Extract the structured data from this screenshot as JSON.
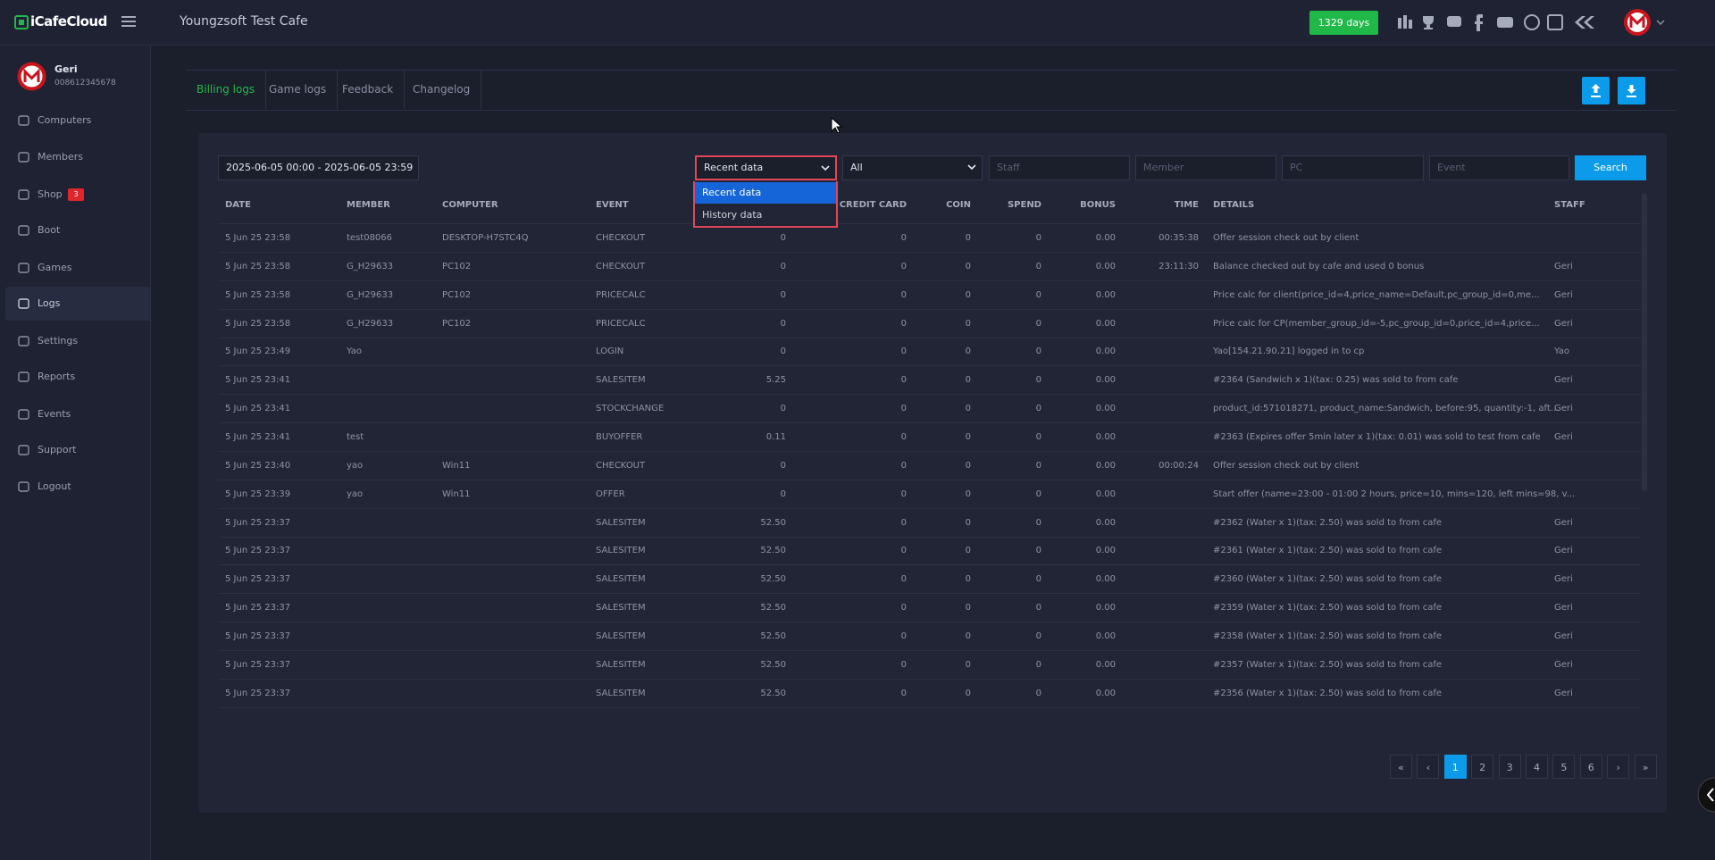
{
  "header": {
    "logo": "iCafeCloud",
    "title": "Youngzsoft Test Cafe",
    "license_button": "1329 days"
  },
  "sidebar": {
    "user_name": "Geri",
    "user_phone": "008612345678",
    "shop_badge": "3",
    "menu": [
      "Computers",
      "Members",
      "Shop",
      "Boot",
      "Games",
      "Logs",
      "Settings",
      "Reports",
      "Events",
      "Support",
      "Logout"
    ],
    "active": "Logs"
  },
  "tabs": [
    "Billing logs",
    "Game logs",
    "Feedback",
    "Changelog"
  ],
  "filters": {
    "date_range": "2025-06-05 00:00 - 2025-06-05 23:59",
    "data_source": "Recent data",
    "data_source_options": [
      "Recent data",
      "History data"
    ],
    "event_type": "All",
    "placeholders": {
      "staff": "Staff",
      "member": "Member",
      "pc": "PC",
      "event": "Event"
    },
    "search_button": "Search"
  },
  "table": {
    "headers": [
      "DATE",
      "MEMBER",
      "COMPUTER",
      "EVENT",
      null,
      "CREDIT CARD",
      "COIN",
      "SPEND",
      "BONUS",
      "TIME",
      "DETAILS",
      "STAFF"
    ],
    "rows": [
      [
        "5 Jun 25 23:58",
        "test08066",
        "DESKTOP-H7STC4Q",
        "CHECKOUT",
        "0",
        "0",
        "0",
        "0",
        "0.00",
        "00:35:38",
        "Offer session check out by client",
        null
      ],
      [
        "5 Jun 25 23:58",
        "G_H29633",
        "PC102",
        "CHECKOUT",
        "0",
        "0",
        "0",
        "0",
        "0.00",
        "23:11:30",
        "Balance checked out by cafe and used 0 bonus",
        "Geri"
      ],
      [
        "5 Jun 25 23:58",
        "G_H29633",
        "PC102",
        "PRICECALC",
        "0",
        "0",
        "0",
        "0",
        "0.00",
        null,
        "Price calc for client(price_id=4,price_name=Default,pc_group_id=0,me...",
        "Geri"
      ],
      [
        "5 Jun 25 23:58",
        "G_H29633",
        "PC102",
        "PRICECALC",
        "0",
        "0",
        "0",
        "0",
        "0.00",
        null,
        "Price calc for CP(member_group_id=-5,pc_group_id=0,price_id=4,price...",
        "Geri"
      ],
      [
        "5 Jun 25 23:49",
        "Yao",
        null,
        "LOGIN",
        "0",
        "0",
        "0",
        "0",
        "0.00",
        null,
        "Yao[154.21.90.21] logged in to cp",
        "Yao"
      ],
      [
        "5 Jun 25 23:41",
        null,
        null,
        "SALESITEM",
        "5.25",
        "0",
        "0",
        "0",
        "0.00",
        null,
        "#2364 (Sandwich x 1)(tax: 0.25) was sold to from cafe",
        "Geri"
      ],
      [
        "5 Jun 25 23:41",
        null,
        null,
        "STOCKCHANGE",
        "0",
        "0",
        "0",
        "0",
        "0.00",
        null,
        "product_id:571018271, product_name:Sandwich, before:95, quantity:-1, aft...",
        "Geri"
      ],
      [
        "5 Jun 25 23:41",
        "test",
        null,
        "BUYOFFER",
        "0.11",
        "0",
        "0",
        "0",
        "0.00",
        null,
        "#2363 (Expires offer 5min later x 1)(tax: 0.01) was sold to test from cafe",
        "Geri"
      ],
      [
        "5 Jun 25 23:40",
        "yao",
        "Win11",
        "CHECKOUT",
        "0",
        "0",
        "0",
        "0",
        "0.00",
        "00:00:24",
        "Offer session check out by client",
        null
      ],
      [
        "5 Jun 25 23:39",
        "yao",
        "Win11",
        "OFFER",
        "0",
        "0",
        "0",
        "0",
        "0.00",
        null,
        "Start offer (name=23:00 - 01:00 2 hours, price=10, mins=120, left mins=98, v...",
        null
      ],
      [
        "5 Jun 25 23:37",
        null,
        null,
        "SALESITEM",
        "52.50",
        "0",
        "0",
        "0",
        "0.00",
        null,
        "#2362 (Water x 1)(tax: 2.50) was sold to from cafe",
        "Geri"
      ],
      [
        "5 Jun 25 23:37",
        null,
        null,
        "SALESITEM",
        "52.50",
        "0",
        "0",
        "0",
        "0.00",
        null,
        "#2361 (Water x 1)(tax: 2.50) was sold to from cafe",
        "Geri"
      ],
      [
        "5 Jun 25 23:37",
        null,
        null,
        "SALESITEM",
        "52.50",
        "0",
        "0",
        "0",
        "0.00",
        null,
        "#2360 (Water x 1)(tax: 2.50) was sold to from cafe",
        "Geri"
      ],
      [
        "5 Jun 25 23:37",
        null,
        null,
        "SALESITEM",
        "52.50",
        "0",
        "0",
        "0",
        "0.00",
        null,
        "#2359 (Water x 1)(tax: 2.50) was sold to from cafe",
        "Geri"
      ],
      [
        "5 Jun 25 23:37",
        null,
        null,
        "SALESITEM",
        "52.50",
        "0",
        "0",
        "0",
        "0.00",
        null,
        "#2358 (Water x 1)(tax: 2.50) was sold to from cafe",
        "Geri"
      ],
      [
        "5 Jun 25 23:37",
        null,
        null,
        "SALESITEM",
        "52.50",
        "0",
        "0",
        "0",
        "0.00",
        null,
        "#2357 (Water x 1)(tax: 2.50) was sold to from cafe",
        "Geri"
      ],
      [
        "5 Jun 25 23:37",
        null,
        null,
        "SALESITEM",
        "52.50",
        "0",
        "0",
        "0",
        "0.00",
        null,
        "#2356 (Water x 1)(tax: 2.50) was sold to from cafe",
        "Geri"
      ]
    ]
  },
  "pagination": {
    "first": "«",
    "prev": "‹",
    "pages": [
      1,
      2,
      3,
      4,
      5,
      6
    ],
    "next": "›",
    "last": "»",
    "current": 1
  }
}
